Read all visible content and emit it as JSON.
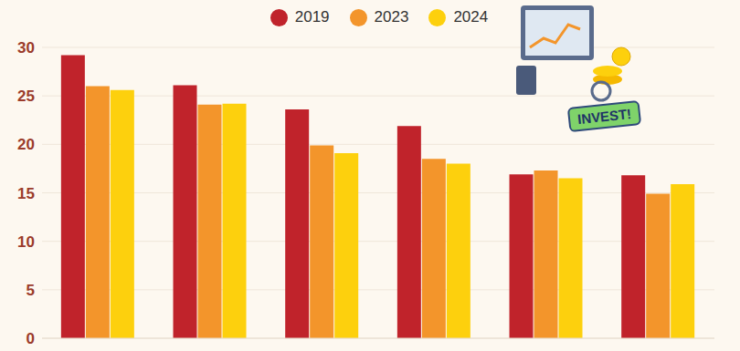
{
  "chart_data": {
    "type": "bar",
    "categories": [
      null,
      null,
      null,
      null,
      null,
      null
    ],
    "series": [
      {
        "name": "2019",
        "color": "#c0232b",
        "values": [
          29.2,
          26.1,
          23.6,
          21.9,
          16.9,
          16.8
        ]
      },
      {
        "name": "2023",
        "color": "#f3952b",
        "values": [
          26.0,
          24.1,
          19.9,
          18.5,
          17.3,
          14.9
        ]
      },
      {
        "name": "2024",
        "color": "#fdd00d",
        "values": [
          25.6,
          24.2,
          19.1,
          18.0,
          16.5,
          15.9
        ]
      }
    ],
    "ylim": [
      0,
      30
    ],
    "yticks": [
      0,
      5,
      10,
      15,
      20,
      25,
      30
    ],
    "grid": true,
    "legend": "top",
    "tick_labels": "y",
    "annotations": [
      "INVEST!"
    ]
  }
}
